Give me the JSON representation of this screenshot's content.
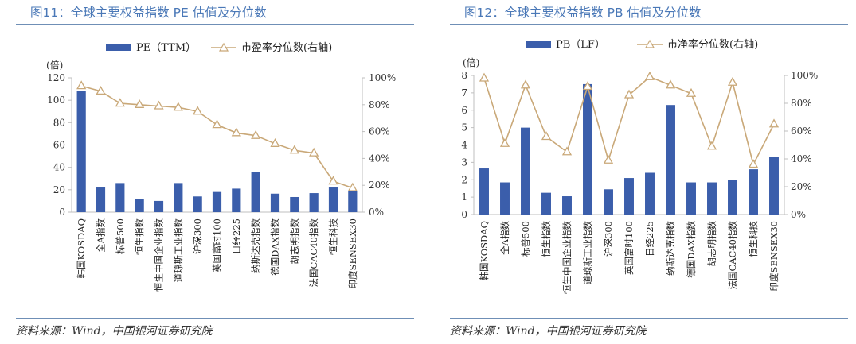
{
  "source_note": "资料来源：Wind，中国银河证券研究院",
  "colors": {
    "title": "#4a78b7",
    "bar": "#3b5eab",
    "line": "#c9a878",
    "rule": "#6f8fb6"
  },
  "chart_data": [
    {
      "figure_title": "图11：全球主要权益指数 PE 估值及分位数",
      "type": "bar",
      "categories": [
        "韩国KOSDAQ",
        "全A指数",
        "标普500",
        "恒生指数",
        "恒生中国企业指数",
        "道琼斯工业指数",
        "沪深300",
        "英国富时100",
        "日经225",
        "纳斯达克指数",
        "德国DAX指数",
        "胡志明指数",
        "法国CAC40指数",
        "恒生科技",
        "印度SENSEX30"
      ],
      "y_unit_label": "(倍)",
      "ylim": [
        0,
        120
      ],
      "y_ticks": [
        "0",
        "20",
        "40",
        "60",
        "80",
        "100",
        "120"
      ],
      "y2lim": [
        0,
        1
      ],
      "y2_ticks": [
        "0%",
        "20%",
        "40%",
        "60%",
        "80%",
        "100%"
      ],
      "legend_position": "top",
      "series": [
        {
          "name": "PE（TTM）",
          "type": "bar",
          "axis": "left",
          "values": [
            108,
            22,
            26,
            12,
            10,
            26,
            14,
            18,
            21,
            36,
            16.5,
            13.5,
            17,
            22,
            19
          ]
        },
        {
          "name": "市盈率分位数(右轴)",
          "type": "line",
          "marker": "triangle",
          "axis": "right",
          "values": [
            0.94,
            0.9,
            0.81,
            0.8,
            0.79,
            0.78,
            0.75,
            0.65,
            0.59,
            0.57,
            0.51,
            0.46,
            0.44,
            0.23,
            0.18
          ]
        }
      ]
    },
    {
      "figure_title": "图12：全球主要权益指数 PB 估值及分位数",
      "type": "bar",
      "categories": [
        "韩国KOSDAQ",
        "全A指数",
        "标普500",
        "恒生指数",
        "恒生中国企业指数",
        "道琼斯工业指数",
        "沪深300",
        "英国富时100",
        "日经225",
        "纳斯达克指数",
        "德国DAX指数",
        "胡志明指数",
        "法国CAC40指数",
        "恒生科技",
        "印度SENSEX30"
      ],
      "y_unit_label": "(倍)",
      "ylim": [
        0,
        8
      ],
      "y_ticks": [
        "0",
        "1",
        "2",
        "3",
        "4",
        "5",
        "6",
        "7",
        "8"
      ],
      "y2lim": [
        0,
        1
      ],
      "y2_ticks": [
        "0%",
        "20%",
        "40%",
        "60%",
        "80%",
        "100%"
      ],
      "legend_position": "top",
      "series": [
        {
          "name": "PB（LF）",
          "type": "bar",
          "axis": "left",
          "values": [
            2.65,
            1.85,
            5.0,
            1.25,
            1.05,
            7.5,
            1.45,
            2.1,
            2.4,
            6.3,
            1.85,
            1.85,
            2.0,
            2.6,
            3.3
          ]
        },
        {
          "name": "市净率分位数(右轴)",
          "type": "line",
          "marker": "triangle",
          "axis": "right",
          "values": [
            0.98,
            0.51,
            0.93,
            0.56,
            0.45,
            0.92,
            0.39,
            0.86,
            0.99,
            0.93,
            0.87,
            0.49,
            0.95,
            0.36,
            0.65
          ]
        }
      ]
    }
  ]
}
